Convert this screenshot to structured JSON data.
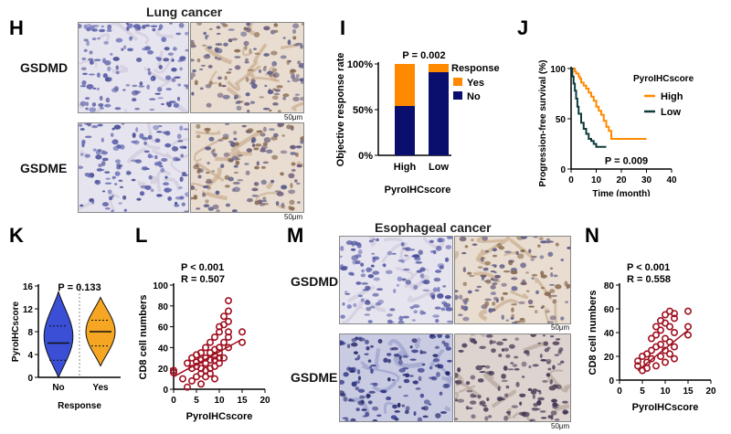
{
  "panels": {
    "H": {
      "letter": "H",
      "title": "Lung cancer",
      "rows": [
        "GSDMD",
        "GSDME"
      ],
      "scale": "50μm"
    },
    "I": {
      "letter": "I"
    },
    "J": {
      "letter": "J"
    },
    "K": {
      "letter": "K"
    },
    "L": {
      "letter": "L"
    },
    "M": {
      "letter": "M",
      "title": "Esophageal cancer",
      "rows": [
        "GSDMD",
        "GSDME"
      ],
      "scale": "50μm"
    },
    "N": {
      "letter": "N"
    }
  },
  "colors": {
    "blue_stain": "#b9bfe0",
    "brown_stain": "#c9ad8e",
    "orange": "#ff8a00",
    "navy": "#0a0f6e",
    "teal_dark": "#0f3b3b",
    "dark_red": "#a01020",
    "violin_blue": "#3a4fd6",
    "violin_orange": "#f5a623"
  },
  "chart_data": [
    {
      "id": "I",
      "type": "bar",
      "stacked": true,
      "categories": [
        "High",
        "Low"
      ],
      "series": [
        {
          "name": "No",
          "values": [
            54,
            91
          ]
        },
        {
          "name": "Yes",
          "values": [
            46,
            9
          ]
        }
      ],
      "ylabel": "Objective response rate",
      "xlabel": "PyroIHCscore",
      "yticks": [
        "0%",
        "50%",
        "100%"
      ],
      "ylim": [
        0,
        100
      ],
      "annotation": "P = 0.002",
      "legend_title": "Response"
    },
    {
      "id": "J",
      "type": "line",
      "series": [
        {
          "name": "High",
          "x": [
            0,
            1,
            1.5,
            2,
            3,
            3.5,
            4,
            5,
            6,
            7,
            8,
            9,
            10,
            11,
            12,
            13,
            14,
            15,
            16,
            30
          ],
          "y": [
            100,
            100,
            97,
            95,
            92,
            90,
            86,
            83,
            80,
            76,
            72,
            68,
            62,
            58,
            54,
            48,
            42,
            38,
            30,
            30
          ]
        },
        {
          "name": "Low",
          "x": [
            0,
            0.5,
            1,
            1.5,
            2,
            2.5,
            3,
            4,
            5,
            6,
            7,
            8,
            9,
            10,
            12,
            14
          ],
          "y": [
            100,
            92,
            85,
            78,
            70,
            62,
            55,
            46,
            40,
            35,
            30,
            28,
            25,
            22,
            22,
            22
          ]
        }
      ],
      "ylabel": "Progression-free survival (%)",
      "xlabel": "Time (month)",
      "xticks": [
        0,
        10,
        20,
        30,
        40
      ],
      "yticks": [
        0,
        50,
        100
      ],
      "xlim": [
        0,
        40
      ],
      "ylim": [
        0,
        100
      ],
      "annotation": "P = 0.009",
      "legend_title": "PyroIHCscore"
    },
    {
      "id": "K",
      "type": "violin",
      "categories": [
        "No",
        "Yes"
      ],
      "ylabel": "PyroIHCscore",
      "xlabel": "Response",
      "yticks": [
        0,
        4,
        8,
        12,
        16
      ],
      "ylim": [
        0,
        16
      ],
      "medians": [
        6,
        8
      ],
      "quartiles": [
        [
          3,
          9
        ],
        [
          5.5,
          10
        ]
      ],
      "ranges": [
        [
          0,
          15
        ],
        [
          2,
          14
        ]
      ],
      "annotation": "P = 0.133"
    },
    {
      "id": "L",
      "type": "scatter",
      "x": [
        0,
        0,
        2,
        3,
        3,
        4,
        4,
        4,
        5,
        5,
        5,
        5,
        6,
        6,
        6,
        6,
        6,
        7,
        7,
        7,
        7,
        7,
        8,
        8,
        8,
        8,
        8,
        9,
        9,
        9,
        9,
        9,
        9,
        10,
        10,
        10,
        10,
        10,
        10,
        11,
        11,
        11,
        11,
        12,
        12,
        12,
        12,
        12,
        12,
        15,
        15
      ],
      "y": [
        16,
        18,
        10,
        2,
        25,
        20,
        30,
        8,
        22,
        26,
        12,
        33,
        15,
        20,
        28,
        35,
        5,
        18,
        25,
        30,
        40,
        12,
        20,
        28,
        35,
        45,
        15,
        22,
        28,
        32,
        38,
        50,
        10,
        25,
        30,
        35,
        40,
        55,
        60,
        30,
        45,
        62,
        70,
        40,
        50,
        55,
        65,
        75,
        85,
        45,
        55
      ],
      "fit": {
        "x": [
          0,
          15
        ],
        "y": [
          12,
          48
        ]
      },
      "ylabel": "CD8 cell numbers",
      "xlabel": "PyroIHCscore",
      "xticks": [
        0,
        5,
        10,
        15,
        20
      ],
      "yticks": [
        0,
        20,
        40,
        60,
        80,
        100
      ],
      "xlim": [
        0,
        20
      ],
      "ylim": [
        0,
        100
      ],
      "annotation": "P < 0.001",
      "annotation2": "R = 0.507"
    },
    {
      "id": "N",
      "type": "scatter",
      "x": [
        4,
        4,
        5,
        5,
        6,
        6,
        6,
        7,
        7,
        7,
        8,
        8,
        8,
        8,
        9,
        9,
        9,
        9,
        10,
        10,
        10,
        10,
        10,
        11,
        11,
        11,
        11,
        12,
        12,
        12,
        12,
        12,
        15,
        15,
        15
      ],
      "y": [
        12,
        16,
        8,
        20,
        15,
        22,
        10,
        18,
        25,
        35,
        12,
        28,
        38,
        45,
        20,
        30,
        42,
        50,
        15,
        25,
        35,
        48,
        55,
        22,
        32,
        45,
        58,
        18,
        28,
        40,
        52,
        56,
        38,
        45,
        58
      ],
      "fit": {
        "x": [
          4,
          15
        ],
        "y": [
          8,
          42
        ]
      },
      "ylabel": "CD8 cell numbers",
      "xlabel": "PyroIHCscore",
      "xticks": [
        0,
        5,
        10,
        15,
        20
      ],
      "yticks": [
        0,
        20,
        40,
        60,
        80
      ],
      "xlim": [
        0,
        20
      ],
      "ylim": [
        0,
        80
      ],
      "annotation": "P < 0.001",
      "annotation2": "R = 0.558"
    }
  ]
}
